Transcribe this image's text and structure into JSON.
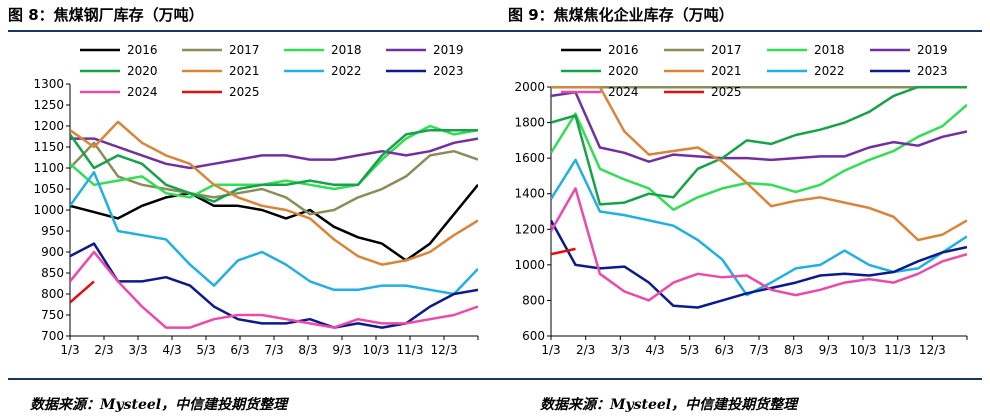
{
  "titles": {
    "left": "图 8：焦煤钢厂库存（万吨）",
    "right": "图 9：焦煤焦化企业库存（万吨）"
  },
  "sources": {
    "left": "数据来源：Mysteel，中信建投期货整理",
    "right": "数据来源：Mysteel，中信建投期货整理"
  },
  "colors": {
    "2016": "#000000",
    "2017": "#8c8c5a",
    "2018": "#33dd55",
    "2019": "#7030a0",
    "2020": "#17a24a",
    "2021": "#d8853a",
    "2022": "#22b0e0",
    "2023": "#0d1a8c",
    "2024": "#ea4aa8",
    "2025": "#e01010",
    "rule": "#17375e"
  },
  "chart_data": [
    {
      "type": "line",
      "title": "焦煤钢厂库存（万吨）",
      "x_tick_labels": [
        "1/3",
        "2/3",
        "3/3",
        "4/3",
        "5/3",
        "6/3",
        "7/3",
        "8/3",
        "9/3",
        "10/3",
        "11/3",
        "12/3"
      ],
      "ylim": [
        700,
        1300
      ],
      "y_ticks": [
        700,
        750,
        800,
        850,
        900,
        950,
        1000,
        1050,
        1100,
        1150,
        1200,
        1250,
        1300
      ],
      "legend": [
        "2016",
        "2017",
        "2018",
        "2019",
        "2020",
        "2021",
        "2022",
        "2023",
        "2024",
        "2025"
      ],
      "series": [
        {
          "name": "2016",
          "values": [
            1010,
            995,
            980,
            1010,
            1030,
            1040,
            1010,
            1010,
            1000,
            980,
            1000,
            960,
            935,
            920,
            880,
            920,
            990,
            1060
          ]
        },
        {
          "name": "2017",
          "values": [
            1100,
            1160,
            1080,
            1060,
            1050,
            1040,
            1030,
            1040,
            1050,
            1030,
            990,
            1000,
            1030,
            1050,
            1080,
            1130,
            1140,
            1120
          ]
        },
        {
          "name": "2018",
          "values": [
            1110,
            1060,
            1070,
            1080,
            1040,
            1030,
            1060,
            1060,
            1060,
            1070,
            1060,
            1050,
            1060,
            1120,
            1170,
            1200,
            1180,
            1190
          ]
        },
        {
          "name": "2019",
          "values": [
            1170,
            1170,
            1150,
            1130,
            1110,
            1100,
            1110,
            1120,
            1130,
            1130,
            1120,
            1120,
            1130,
            1140,
            1130,
            1140,
            1160,
            1170
          ]
        },
        {
          "name": "2020",
          "values": [
            1180,
            1100,
            1130,
            1110,
            1060,
            1040,
            1020,
            1050,
            1060,
            1060,
            1070,
            1060,
            1060,
            1130,
            1180,
            1190,
            1190,
            1190
          ]
        },
        {
          "name": "2021",
          "values": [
            1190,
            1150,
            1210,
            1160,
            1130,
            1110,
            1060,
            1030,
            1010,
            1000,
            980,
            930,
            890,
            870,
            880,
            900,
            940,
            975
          ]
        },
        {
          "name": "2022",
          "values": [
            1010,
            1090,
            950,
            940,
            930,
            870,
            820,
            880,
            900,
            870,
            830,
            810,
            810,
            820,
            820,
            810,
            800,
            860
          ]
        },
        {
          "name": "2023",
          "values": [
            890,
            920,
            830,
            830,
            840,
            820,
            770,
            740,
            730,
            730,
            740,
            720,
            730,
            720,
            730,
            770,
            800,
            810
          ]
        },
        {
          "name": "2024",
          "values": [
            830,
            900,
            830,
            770,
            720,
            720,
            740,
            750,
            750,
            740,
            730,
            720,
            740,
            730,
            730,
            740,
            750,
            770
          ]
        },
        {
          "name": "2025",
          "values": [
            780,
            830
          ]
        }
      ]
    },
    {
      "type": "line",
      "title": "焦煤焦化企业库存（万吨）",
      "x_tick_labels": [
        "1/3",
        "2/3",
        "3/3",
        "4/3",
        "5/3",
        "6/3",
        "7/3",
        "8/3",
        "9/3",
        "10/3",
        "11/3",
        "12/3"
      ],
      "ylim": [
        600,
        2000
      ],
      "y_ticks": [
        600,
        800,
        1000,
        1200,
        1400,
        1600,
        1800,
        2000
      ],
      "legend": [
        "2016",
        "2017",
        "2018",
        "2019",
        "2020",
        "2021",
        "2022",
        "2023",
        "2024",
        "2025"
      ],
      "series": [
        {
          "name": "2016",
          "values": [
            2000,
            2000,
            2000,
            2000,
            2000,
            2000,
            2000,
            2000,
            2000,
            2000,
            2000,
            2000,
            2000,
            2000,
            2000,
            2000,
            2000,
            2000
          ]
        },
        {
          "name": "2017",
          "values": [
            2000,
            2000,
            2000,
            2000,
            2000,
            2000,
            2000,
            2000,
            2000,
            2000,
            2000,
            2000,
            2000,
            2000,
            2000,
            2000,
            2000,
            2000
          ]
        },
        {
          "name": "2018",
          "values": [
            1630,
            1850,
            1540,
            1480,
            1430,
            1310,
            1380,
            1430,
            1460,
            1450,
            1410,
            1450,
            1530,
            1590,
            1640,
            1720,
            1780,
            1900
          ]
        },
        {
          "name": "2019",
          "values": [
            1950,
            1970,
            1660,
            1630,
            1580,
            1620,
            1610,
            1600,
            1600,
            1590,
            1600,
            1610,
            1610,
            1660,
            1690,
            1670,
            1720,
            1750
          ]
        },
        {
          "name": "2020",
          "values": [
            1800,
            1840,
            1340,
            1350,
            1400,
            1380,
            1540,
            1600,
            1700,
            1680,
            1730,
            1760,
            1800,
            1860,
            1950,
            2000,
            2000,
            2000
          ]
        },
        {
          "name": "2021",
          "values": [
            2000,
            2000,
            2000,
            1750,
            1620,
            1640,
            1660,
            1580,
            1460,
            1330,
            1360,
            1380,
            1350,
            1320,
            1270,
            1140,
            1170,
            1250
          ]
        },
        {
          "name": "2022",
          "values": [
            1370,
            1590,
            1300,
            1280,
            1250,
            1220,
            1140,
            1030,
            830,
            900,
            980,
            1000,
            1080,
            1000,
            960,
            980,
            1070,
            1160
          ]
        },
        {
          "name": "2023",
          "values": [
            1250,
            1000,
            980,
            990,
            900,
            770,
            760,
            800,
            840,
            870,
            900,
            940,
            950,
            940,
            960,
            1020,
            1070,
            1100
          ]
        },
        {
          "name": "2024",
          "values": [
            1190,
            1430,
            950,
            850,
            800,
            900,
            950,
            930,
            940,
            860,
            830,
            860,
            900,
            920,
            900,
            950,
            1020,
            1060
          ]
        },
        {
          "name": "2025",
          "values": [
            1060,
            1090
          ]
        }
      ]
    }
  ]
}
